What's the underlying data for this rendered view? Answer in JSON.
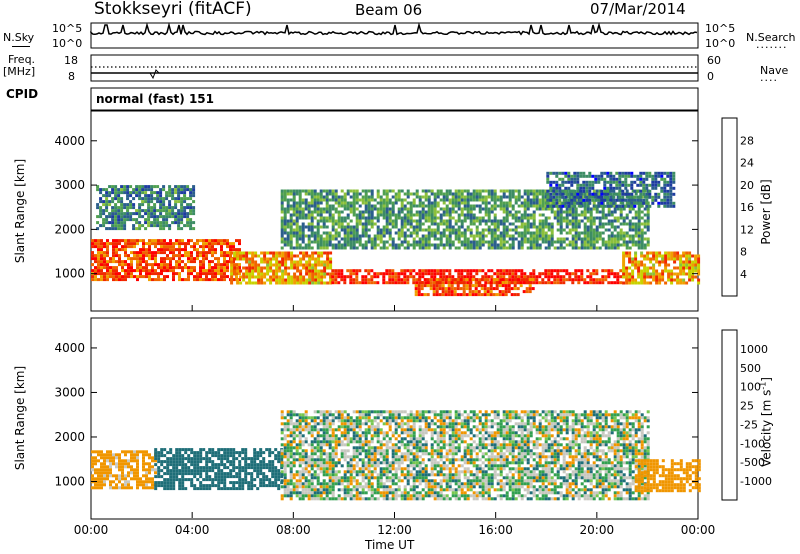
{
  "header": {
    "station": "Stokkseyri (fitACF)",
    "beam": "Beam 06",
    "date": "07/Mar/2014"
  },
  "top_panels": {
    "nsky_label": "N.Sky",
    "nsky_ticks": [
      "10^5",
      "10^0"
    ],
    "nsearch_label": "N.Search",
    "nsearch_ticks": [
      "10^5",
      "10^0"
    ],
    "freq_label": "Freq.",
    "freq_unit": "[MHz]",
    "freq_ticks": [
      "18",
      "8"
    ],
    "nave_label": "Nave",
    "nave_ticks": [
      "60",
      "0"
    ],
    "cpid_label": "CPID",
    "cpid_value": "normal (fast) 151"
  },
  "colors": {
    "power_scale": [
      "#0000ff",
      "#1e3ca0",
      "#2b5e8c",
      "#3c8c64",
      "#50a050",
      "#8cc03c",
      "#c8d200",
      "#f0a000",
      "#f06400",
      "#f02800",
      "#ff0000"
    ],
    "velocity_scale": [
      "#ff0000",
      "#f05a00",
      "#f09600",
      "#fac800",
      "#c8c8c0",
      "#c8c8c0",
      "#78c850",
      "#32a050",
      "#1e6e78",
      "#1e3ca0",
      "#0000ff"
    ],
    "ground_scatter": "#c8c8c0"
  },
  "chart_data": [
    {
      "type": "heatmap",
      "name": "power",
      "ylabel": "Slant Range [km]",
      "colorbar_label": "Power [dB]",
      "colorbar_ticks": [
        4,
        8,
        12,
        16,
        20,
        24,
        28
      ],
      "yticks": [
        1000,
        2000,
        3000,
        4000
      ],
      "ylim": [
        180,
        4650
      ],
      "x_range_hours": [
        0,
        24
      ],
      "regions": [
        {
          "t": [
            0,
            5.9
          ],
          "r": [
            850,
            1780
          ],
          "value": 26
        },
        {
          "t": [
            0.2,
            4.0
          ],
          "r": [
            2000,
            3000
          ],
          "value": 10
        },
        {
          "t": [
            5.5,
            9.5
          ],
          "r": [
            800,
            1500
          ],
          "value": 22
        },
        {
          "t": [
            7.5,
            22
          ],
          "r": [
            1600,
            2900
          ],
          "value": 12
        },
        {
          "t": [
            9.5,
            21
          ],
          "r": [
            800,
            1100
          ],
          "value": 28
        },
        {
          "t": [
            12.8,
            17.5
          ],
          "r": [
            500,
            900
          ],
          "value": 26
        },
        {
          "t": [
            21,
            24
          ],
          "r": [
            800,
            1500
          ],
          "value": 22
        },
        {
          "t": [
            18,
            23
          ],
          "r": [
            2500,
            3300
          ],
          "value": 8
        }
      ]
    },
    {
      "type": "heatmap",
      "name": "velocity",
      "ylabel": "Slant Range [km]",
      "xlabel": "Time UT",
      "colorbar_label": "Velocity [m s^-1]",
      "colorbar_ticks": [
        1000,
        500,
        100,
        25,
        -25,
        -100,
        -500,
        -1000
      ],
      "yticks": [
        1000,
        2000,
        3000,
        4000
      ],
      "ylim": [
        180,
        4650
      ],
      "xticks": [
        "00:00",
        "04:00",
        "08:00",
        "12:00",
        "16:00",
        "20:00",
        "00:00"
      ],
      "regions": [
        {
          "t": [
            0,
            2.5
          ],
          "r": [
            850,
            1700
          ],
          "value": -200
        },
        {
          "t": [
            2.5,
            7.5
          ],
          "r": [
            850,
            1750
          ],
          "value": 300
        },
        {
          "t": [
            7.5,
            22
          ],
          "r": [
            600,
            2600
          ],
          "value": 0
        },
        {
          "t": [
            21.5,
            24
          ],
          "r": [
            800,
            1500
          ],
          "value": -300
        }
      ]
    }
  ],
  "footer": {
    "xlabel": "Time UT",
    "xticks": [
      "00:00",
      "04:00",
      "08:00",
      "12:00",
      "16:00",
      "20:00",
      "00:00"
    ]
  },
  "labels": {
    "power_y": "Slant Range [km]",
    "velocity_y": "Slant Range [km]",
    "power_cb": "Power [dB]",
    "velocity_cb": "Velocity [m s"
  }
}
